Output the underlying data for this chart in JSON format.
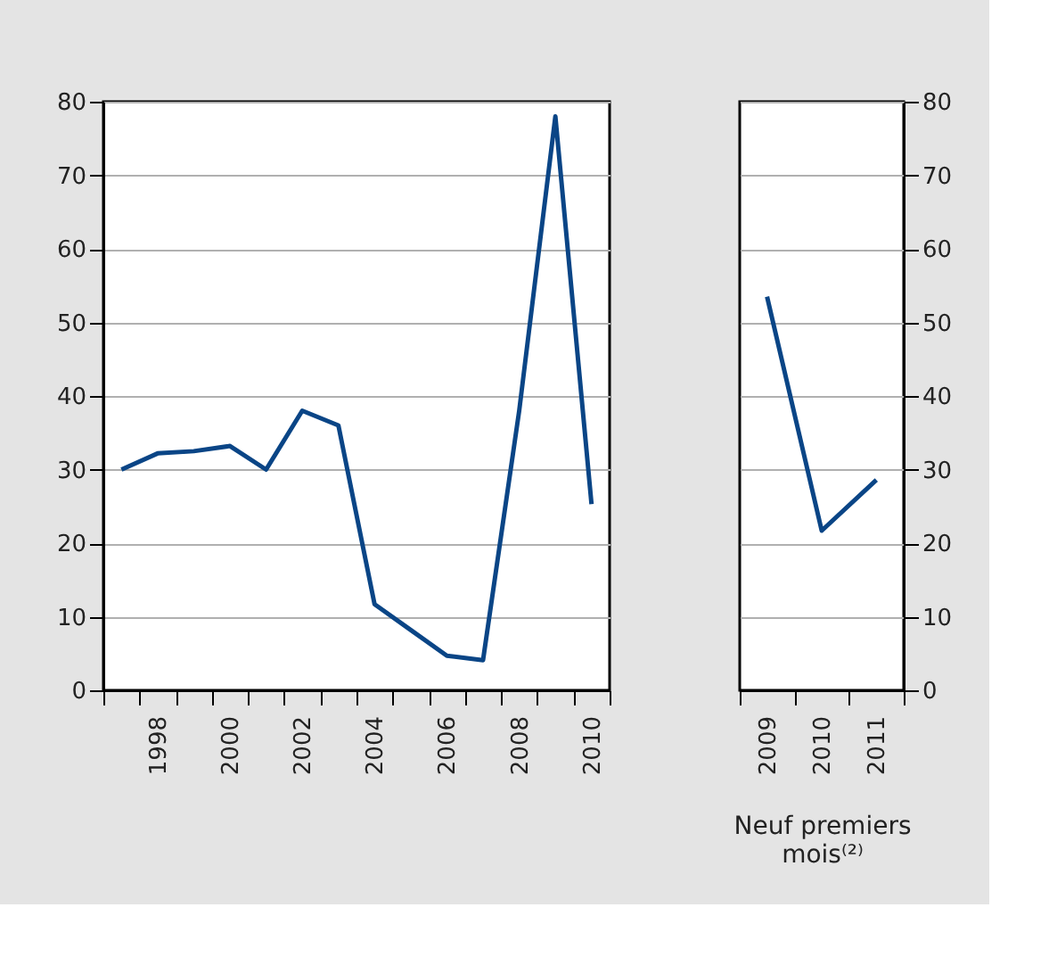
{
  "chart_data": [
    {
      "type": "line",
      "categories": [
        null,
        "1998",
        null,
        "2000",
        null,
        "2002",
        null,
        "2004",
        null,
        "2006",
        null,
        "2008",
        null,
        "2010"
      ],
      "series": [
        {
          "color": "#0a4586",
          "values": [
            30,
            32.2,
            32.5,
            33.2,
            30,
            38,
            36,
            11.7,
            8.2,
            4.7,
            4.1,
            38,
            78,
            25.3
          ]
        }
      ],
      "ylim": [
        0,
        80
      ],
      "yticks": [
        0,
        10,
        20,
        30,
        40,
        50,
        60,
        70,
        80
      ],
      "grid": "y",
      "marker": "none",
      "line_style": "solid"
    },
    {
      "type": "line",
      "categories": [
        "2009",
        "2010",
        "2011"
      ],
      "xlabel": "Neuf premiers mois⁽²⁾",
      "series": [
        {
          "color": "#0a4586",
          "values": [
            53.5,
            21.7,
            28.6
          ]
        }
      ],
      "ylim": [
        0,
        80
      ],
      "yticks": [
        0,
        10,
        20,
        30,
        40,
        50,
        60,
        70,
        80
      ],
      "grid": "y",
      "marker": "none",
      "line_style": "solid"
    }
  ]
}
